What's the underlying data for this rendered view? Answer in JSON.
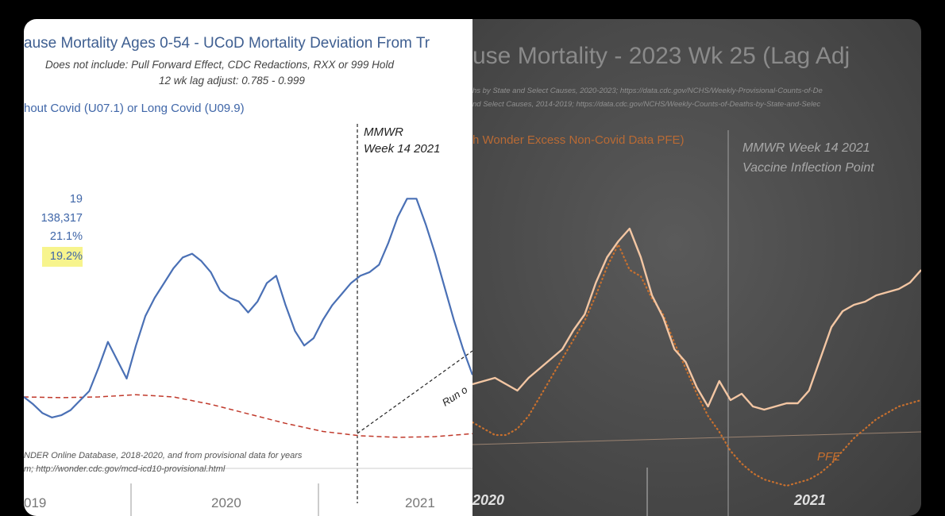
{
  "chart_data": [
    {
      "type": "line",
      "title": "ause Mortality Ages 0-54 - UCoD Mortality Deviation From Tr",
      "subtitle_1": "Does not include: Pull Forward Effect,  CDC Redactions, RXX or 999 Hold",
      "subtitle_2": "12 wk lag adjust: 0.785 - 0.999",
      "legend_text": "hout Covid (U07.1) or Long Covid (U09.9)",
      "annotation": "MMWR\nWeek 14 2021",
      "stats": [
        "19",
        "138,317",
        "21.1%",
        "19.2%"
      ],
      "source_text": "NDER Online Database, 2018-2020, and from provisional data for years\nm; http://wonder.cdc.gov/mcd-icd10-provisional.html",
      "trend_label": "Run o",
      "x_tick_labels": [
        "019",
        "2020",
        "2021"
      ],
      "series": [
        {
          "color": "#4a70b5",
          "x": [
            2019.0,
            2019.05,
            2019.1,
            2019.15,
            2019.2,
            2019.25,
            2019.3,
            2019.35,
            2019.4,
            2019.45,
            2019.5,
            2019.55,
            2019.6,
            2019.65,
            2019.7,
            2019.75,
            2019.8,
            2019.85,
            2019.9,
            2019.95,
            2020.0,
            2020.05,
            2020.1,
            2020.15,
            2020.2,
            2020.25,
            2020.3,
            2020.35,
            2020.4,
            2020.45,
            2020.5,
            2020.55,
            2020.6,
            2020.65,
            2020.7,
            2020.75,
            2020.8,
            2020.85,
            2020.9,
            2020.95,
            2021.0,
            2021.05,
            2021.1,
            2021.15,
            2021.2,
            2021.25,
            2021.3,
            2021.35,
            2021.4
          ],
          "y": [
            0.0,
            -1.0,
            -2.2,
            -2.8,
            -2.5,
            -1.8,
            -0.5,
            0.8,
            4.0,
            7.5,
            5.0,
            2.5,
            7.0,
            11.0,
            13.5,
            15.5,
            17.5,
            19.0,
            19.5,
            18.5,
            17.0,
            14.5,
            13.5,
            13.0,
            11.5,
            13.0,
            15.5,
            16.5,
            12.5,
            9.0,
            7.0,
            8.0,
            10.5,
            12.5,
            14.0,
            15.5,
            16.5,
            17.0,
            18.0,
            21.0,
            24.5,
            27.0,
            27.0,
            23.5,
            19.5,
            15.0,
            10.5,
            6.5,
            3.0
          ]
        },
        {
          "color": "#c0392b",
          "style": "dashed",
          "x": [
            2019.0,
            2019.2,
            2019.4,
            2019.6,
            2019.8,
            2020.0,
            2020.2,
            2020.4,
            2020.6,
            2020.8,
            2021.0,
            2021.2,
            2021.4
          ],
          "y": [
            0.0,
            -0.1,
            0.0,
            0.3,
            0.0,
            -1.0,
            -2.3,
            -3.6,
            -4.7,
            -5.3,
            -5.5,
            -5.4,
            -5.0
          ]
        }
      ]
    },
    {
      "type": "line",
      "title": "use Mortality - 2023 Wk 25 (Lag Adj",
      "source_text": "hs by State and Select Causes, 2020-2023; https://data.cdc.gov/NCHS/Weekly-Provisional-Counts-of-De\nnd Select Causes, 2014-2019; https://data.cdc.gov/NCHS/Weekly-Counts-of-Deaths-by-State-and-Selec",
      "legend_text": "h Wonder Excess Non-Covid Data PFE)",
      "annotation": "MMWR Week 14 2021\nVaccine Inflection Point",
      "pfe_label": "PFE",
      "x_tick_labels": [
        "2020",
        "2021"
      ],
      "series": [
        {
          "color": "#f3c6a3",
          "x": [
            0,
            1,
            2,
            3,
            4,
            5,
            6,
            7,
            8,
            9,
            10,
            11,
            12,
            13,
            14,
            15,
            16,
            17,
            18,
            19,
            20,
            21,
            22,
            23,
            24,
            25,
            26,
            27,
            28,
            29,
            30,
            31,
            32,
            33,
            34,
            35,
            36,
            37,
            38,
            39,
            40
          ],
          "y": [
            3.0,
            3.2,
            3.4,
            3.0,
            2.6,
            3.4,
            4.0,
            4.6,
            5.2,
            6.4,
            7.4,
            9.4,
            11.0,
            12.0,
            12.8,
            11.0,
            8.6,
            7.2,
            5.2,
            4.4,
            2.8,
            1.6,
            3.2,
            2.0,
            2.4,
            1.6,
            1.4,
            1.6,
            1.8,
            1.8,
            2.6,
            4.6,
            6.6,
            7.6,
            8.0,
            8.2,
            8.6,
            8.8,
            9.0,
            9.4,
            10.2
          ]
        },
        {
          "color": "#c8702e",
          "style": "dotted",
          "x": [
            0,
            1,
            2,
            3,
            4,
            5,
            6,
            7,
            8,
            9,
            10,
            11,
            12,
            13,
            14,
            15,
            16,
            17,
            18,
            19,
            20,
            21,
            22,
            23,
            24,
            25,
            26,
            27,
            28,
            29,
            30,
            31,
            32,
            33,
            34,
            35,
            36,
            37,
            38,
            39,
            40
          ],
          "y": [
            0.6,
            0.2,
            -0.2,
            -0.2,
            0.2,
            1.0,
            2.2,
            3.4,
            4.6,
            5.8,
            7.0,
            8.6,
            10.4,
            11.8,
            10.2,
            9.8,
            8.4,
            7.4,
            5.6,
            4.0,
            2.4,
            1.0,
            0.0,
            -1.2,
            -2.0,
            -2.6,
            -3.0,
            -3.2,
            -3.4,
            -3.2,
            -3.0,
            -2.6,
            -2.0,
            -1.2,
            -0.4,
            0.2,
            0.8,
            1.2,
            1.6,
            1.8,
            2.0
          ]
        }
      ]
    }
  ]
}
